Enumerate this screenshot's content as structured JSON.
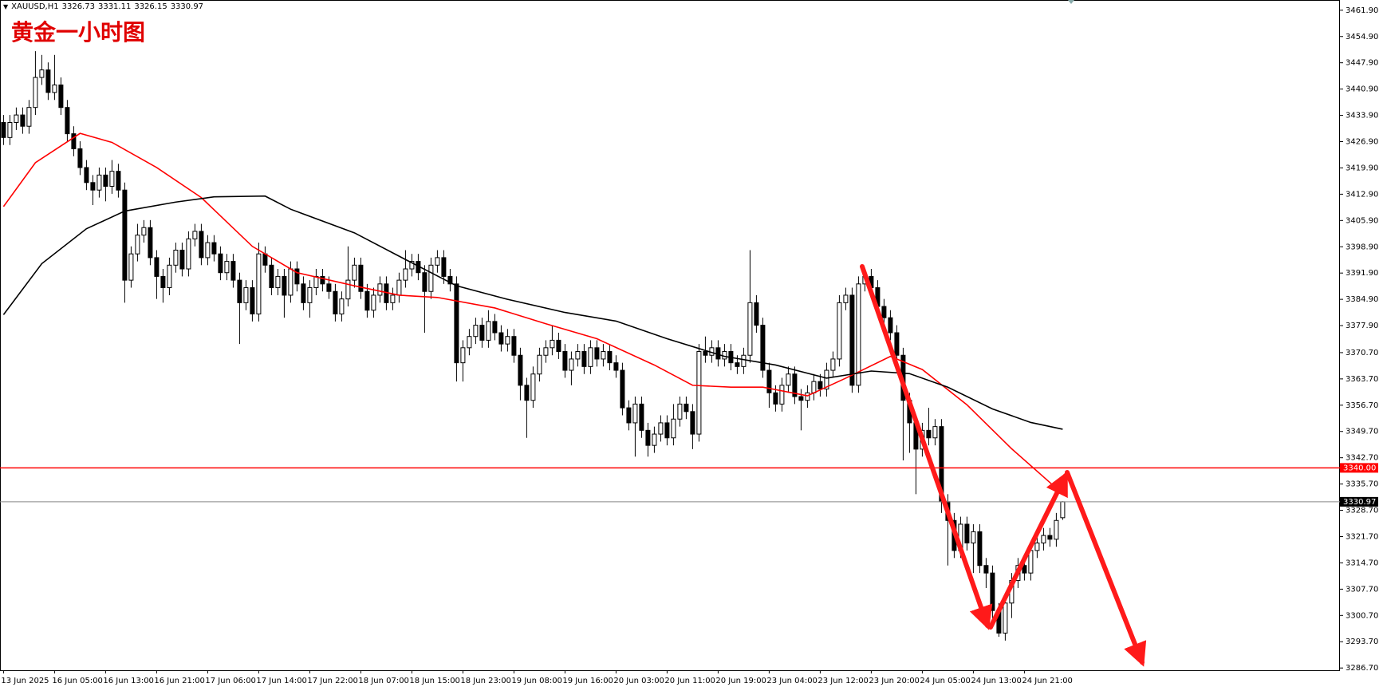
{
  "chart_data": {
    "type": "candlestick",
    "title": "黄金一小时图",
    "symbol": "XAUUSD,H1",
    "categories": [
      "13 Jun 2025",
      null,
      null,
      null,
      null,
      null,
      null,
      null,
      "16 Jun 05:00",
      null,
      null,
      null,
      null,
      null,
      null,
      null,
      "16 Jun 13:00",
      null,
      null,
      null,
      null,
      null,
      null,
      null,
      "16 Jun 21:00",
      null,
      null,
      null,
      null,
      null,
      null,
      null,
      "17 Jun 06:00",
      null,
      null,
      null,
      null,
      null,
      null,
      null,
      "17 Jun 14:00",
      null,
      null,
      null,
      null,
      null,
      null,
      null,
      "17 Jun 22:00",
      null,
      null,
      null,
      null,
      null,
      null,
      null,
      "18 Jun 07:00",
      null,
      null,
      null,
      null,
      null,
      null,
      null,
      "18 Jun 15:00",
      null,
      null,
      null,
      null,
      null,
      null,
      null,
      "18 Jun 23:00",
      null,
      null,
      null,
      null,
      null,
      null,
      null,
      "19 Jun 08:00",
      null,
      null,
      null,
      null,
      null,
      null,
      null,
      "19 Jun 16:00",
      null,
      null,
      null,
      null,
      null,
      null,
      null,
      "20 Jun 03:00",
      null,
      null,
      null,
      null,
      null,
      null,
      null,
      "20 Jun 11:00",
      null,
      null,
      null,
      null,
      null,
      null,
      null,
      "20 Jun 19:00",
      null,
      null,
      null,
      null,
      null,
      null,
      null,
      "23 Jun 04:00",
      null,
      null,
      null,
      null,
      null,
      null,
      null,
      "23 Jun 12:00",
      null,
      null,
      null,
      null,
      null,
      null,
      null,
      "23 Jun 20:00",
      null,
      null,
      null,
      null,
      null,
      null,
      null,
      "24 Jun 05:00",
      null,
      null,
      null,
      null,
      null,
      null,
      null,
      "24 Jun 13:00",
      null,
      null,
      null,
      null,
      null,
      null,
      null,
      "24 Jun 21:00",
      null,
      null,
      null,
      null,
      null,
      null
    ],
    "open": [
      3432,
      3428,
      3432,
      3434,
      3431,
      3436,
      3444,
      3446,
      3440,
      3442,
      3436,
      3429,
      3425,
      3420,
      3416,
      3414,
      3418,
      3415,
      3419,
      3414,
      3390,
      3397,
      3402,
      3404,
      3396,
      3391,
      3388,
      3394,
      3398,
      3393,
      3401,
      3403,
      3396,
      3400,
      3397,
      3392,
      3395,
      3390,
      3384,
      3388,
      3381,
      3397,
      3394,
      3388,
      3391,
      3386,
      3393,
      3389,
      3384,
      3388,
      3391,
      3389,
      3387,
      3381,
      3385,
      3390,
      3394,
      3387,
      3382,
      3386,
      3389,
      3384,
      3386,
      3390,
      3393,
      3395,
      3392,
      3387,
      3394,
      3396,
      3391,
      3389,
      3368,
      3372,
      3375,
      3378,
      3374,
      3379,
      3376,
      3373,
      3375,
      3370,
      3362,
      3358,
      3365,
      3370,
      3372,
      3374,
      3371,
      3366,
      3369,
      3371,
      3367,
      3372,
      3369,
      3371,
      3368,
      3366,
      3356,
      3352,
      3357,
      3350,
      3346,
      3349,
      3352,
      3348,
      3353,
      3357,
      3355,
      3349,
      3371,
      3370,
      3372,
      3369,
      3371,
      3368,
      3367,
      3370,
      3384,
      3378,
      3366,
      3360,
      3357,
      3362,
      3365,
      3359,
      3358,
      3360,
      3363,
      3361,
      3366,
      3369,
      3384,
      3386,
      3362,
      3389,
      3391,
      3388,
      3383,
      3380,
      3376,
      3370,
      3358,
      3352,
      3345,
      3350,
      3348,
      3351,
      3331,
      3326,
      3318,
      3325,
      3320,
      3323,
      3314,
      3312,
      3302,
      3296,
      3304,
      3310,
      3314,
      3312,
      3318,
      3320,
      3322,
      3321,
      3326.73
    ],
    "high": [
      3434,
      3434,
      3436,
      3436,
      3438,
      3451,
      3450,
      3448,
      3450,
      3444,
      3438,
      3431,
      3427,
      3422,
      3418,
      3420,
      3420,
      3422,
      3421,
      3416,
      3399,
      3405,
      3406,
      3406,
      3398,
      3393,
      3396,
      3400,
      3400,
      3403,
      3405,
      3405,
      3402,
      3402,
      3399,
      3397,
      3397,
      3392,
      3390,
      3390,
      3400,
      3399,
      3396,
      3393,
      3393,
      3395,
      3395,
      3391,
      3390,
      3393,
      3393,
      3391,
      3389,
      3387,
      3399,
      3396,
      3396,
      3389,
      3388,
      3391,
      3391,
      3388,
      3392,
      3398,
      3397,
      3397,
      3394,
      3396,
      3398,
      3398,
      3393,
      3391,
      3374,
      3377,
      3380,
      3380,
      3382,
      3381,
      3378,
      3377,
      3377,
      3372,
      3364,
      3367,
      3372,
      3374,
      3378,
      3376,
      3373,
      3371,
      3373,
      3373,
      3374,
      3374,
      3373,
      3373,
      3370,
      3368,
      3358,
      3359,
      3359,
      3352,
      3351,
      3354,
      3354,
      3357,
      3359,
      3359,
      3357,
      3373,
      3375,
      3374,
      3374,
      3373,
      3373,
      3370,
      3372,
      3398,
      3386,
      3380,
      3368,
      3362,
      3364,
      3367,
      3367,
      3361,
      3362,
      3365,
      3365,
      3368,
      3371,
      3386,
      3388,
      3388,
      3391,
      3393,
      3393,
      3390,
      3385,
      3382,
      3378,
      3372,
      3360,
      3354,
      3352,
      3356,
      3353,
      3353,
      3333,
      3328,
      3327,
      3327,
      3325,
      3325,
      3316,
      3314,
      3304,
      3306,
      3312,
      3316,
      3316,
      3320,
      3322,
      3324,
      3324,
      3328,
      3331.11
    ],
    "low": [
      3426,
      3426,
      3430,
      3429,
      3429,
      3434,
      3442,
      3438,
      3438,
      3434,
      3427,
      3423,
      3418,
      3414,
      3410,
      3412,
      3411,
      3413,
      3412,
      3384,
      3388,
      3395,
      3400,
      3394,
      3385,
      3384,
      3386,
      3392,
      3391,
      3391,
      3399,
      3394,
      3394,
      3395,
      3390,
      3390,
      3388,
      3373,
      3382,
      3379,
      3379,
      3392,
      3386,
      3386,
      3380,
      3384,
      3387,
      3382,
      3380,
      3386,
      3387,
      3385,
      3379,
      3379,
      3383,
      3388,
      3385,
      3380,
      3380,
      3384,
      3382,
      3382,
      3384,
      3388,
      3391,
      3390,
      3376,
      3385,
      3392,
      3389,
      3387,
      3363,
      3363,
      3370,
      3373,
      3372,
      3372,
      3374,
      3371,
      3371,
      3368,
      3358,
      3348,
      3356,
      3363,
      3368,
      3370,
      3369,
      3364,
      3362,
      3367,
      3365,
      3365,
      3367,
      3367,
      3366,
      3364,
      3354,
      3350,
      3343,
      3348,
      3343,
      3344,
      3347,
      3346,
      3346,
      3351,
      3353,
      3345,
      3347,
      3368,
      3368,
      3367,
      3367,
      3366,
      3365,
      3365,
      3368,
      3376,
      3364,
      3356,
      3355,
      3355,
      3360,
      3357,
      3350,
      3356,
      3358,
      3359,
      3359,
      3364,
      3367,
      3382,
      3360,
      3360,
      3387,
      3386,
      3381,
      3376,
      3374,
      3368,
      3342,
      3344,
      3333,
      3343,
      3346,
      3346,
      3328,
      3314,
      3316,
      3316,
      3318,
      3312,
      3312,
      3308,
      3300,
      3295,
      3294,
      3300,
      3308,
      3310,
      3310,
      3316,
      3318,
      3319,
      3319,
      3326.15
    ],
    "close": [
      3428,
      3432,
      3434,
      3431,
      3436,
      3444,
      3446,
      3440,
      3442,
      3436,
      3429,
      3425,
      3420,
      3416,
      3414,
      3418,
      3415,
      3419,
      3414,
      3390,
      3397,
      3402,
      3404,
      3396,
      3391,
      3388,
      3394,
      3398,
      3393,
      3401,
      3403,
      3396,
      3400,
      3397,
      3392,
      3395,
      3390,
      3384,
      3388,
      3381,
      3397,
      3394,
      3388,
      3391,
      3386,
      3393,
      3389,
      3384,
      3388,
      3391,
      3389,
      3387,
      3381,
      3385,
      3390,
      3394,
      3387,
      3382,
      3386,
      3389,
      3384,
      3386,
      3390,
      3393,
      3395,
      3392,
      3387,
      3394,
      3396,
      3391,
      3389,
      3368,
      3372,
      3375,
      3378,
      3374,
      3379,
      3376,
      3373,
      3375,
      3370,
      3362,
      3358,
      3365,
      3370,
      3372,
      3374,
      3371,
      3366,
      3369,
      3371,
      3367,
      3372,
      3369,
      3371,
      3368,
      3366,
      3356,
      3352,
      3357,
      3350,
      3346,
      3349,
      3352,
      3348,
      3353,
      3357,
      3355,
      3349,
      3371,
      3370,
      3372,
      3369,
      3371,
      3368,
      3367,
      3370,
      3384,
      3378,
      3366,
      3360,
      3357,
      3362,
      3365,
      3359,
      3358,
      3360,
      3363,
      3361,
      3366,
      3369,
      3384,
      3386,
      3362,
      3389,
      3391,
      3388,
      3383,
      3380,
      3376,
      3370,
      3358,
      3352,
      3345,
      3350,
      3348,
      3351,
      3331,
      3326,
      3318,
      3325,
      3320,
      3323,
      3314,
      3312,
      3302,
      3296,
      3304,
      3310,
      3314,
      3312,
      3318,
      3320,
      3322,
      3321,
      3326,
      3330.97
    ],
    "bull_color": "#ffffff",
    "bear_color": "#000000",
    "wick_color": "#000000",
    "overlays": [
      {
        "color": "#ff0000",
        "x": [
          0,
          5,
          12,
          17,
          24,
          31,
          39,
          46,
          55,
          62,
          68,
          77,
          85,
          93,
          102,
          108,
          114,
          119,
          126,
          132,
          139,
          144,
          151,
          158,
          165,
          166
        ],
        "values": [
          3409.6,
          3421.3,
          3429.1,
          3426.7,
          3420,
          3412,
          3399,
          3392,
          3388.5,
          3386,
          3385.4,
          3382.6,
          3378.4,
          3374.4,
          3367.4,
          3362,
          3361.5,
          3361.5,
          3359.2,
          3363.9,
          3369.7,
          3366.2,
          3356.8,
          3345.1,
          3334.6,
          3333.4
        ]
      },
      {
        "color": "#000000",
        "x": [
          0,
          6,
          13,
          19,
          27,
          33,
          41,
          45,
          55,
          63,
          71,
          79,
          88,
          96,
          104,
          113,
          121,
          129,
          136,
          142,
          148,
          155,
          161,
          166
        ],
        "values": [
          3380.8,
          3394.4,
          3403.7,
          3408.4,
          3410.8,
          3412.2,
          3412.4,
          3408.9,
          3402.6,
          3395.5,
          3388.5,
          3384.9,
          3381.4,
          3379.1,
          3374.4,
          3369.7,
          3367.4,
          3363.9,
          3365.8,
          3365.1,
          3361.5,
          3355.7,
          3352.1,
          3350.3
        ]
      }
    ],
    "levels": [
      {
        "value": 3340,
        "label": "3340.00",
        "color": "#ff0000"
      }
    ],
    "ylim": [
      3286.1,
      3464.2
    ],
    "yticks": [
      {
        "value": 3461.9,
        "label": "3461.90"
      },
      {
        "value": 3454.9,
        "label": "3454.90"
      },
      {
        "value": 3447.9,
        "label": "3447.90"
      },
      {
        "value": 3440.9,
        "label": "3440.90"
      },
      {
        "value": 3433.9,
        "label": "3433.90"
      },
      {
        "value": 3426.9,
        "label": "3426.90"
      },
      {
        "value": 3419.9,
        "label": "3419.90"
      },
      {
        "value": 3412.9,
        "label": "3412.90"
      },
      {
        "value": 3405.9,
        "label": "3405.90"
      },
      {
        "value": 3398.9,
        "label": "3398.90"
      },
      {
        "value": 3391.9,
        "label": "3391.90"
      },
      {
        "value": 3384.9,
        "label": "3384.90"
      },
      {
        "value": 3377.9,
        "label": "3377.90"
      },
      {
        "value": 3370.7,
        "label": "3370.70"
      },
      {
        "value": 3363.7,
        "label": "3363.70"
      },
      {
        "value": 3356.7,
        "label": "3356.70"
      },
      {
        "value": 3349.7,
        "label": "3349.70"
      },
      {
        "value": 3342.7,
        "label": "3342.70"
      },
      {
        "value": 3335.7,
        "label": "3335.70"
      },
      {
        "value": 3328.7,
        "label": "3328.70"
      },
      {
        "value": 3321.7,
        "label": "3321.70"
      },
      {
        "value": 3314.7,
        "label": "3314.70"
      },
      {
        "value": 3307.7,
        "label": "3307.70"
      },
      {
        "value": 3300.7,
        "label": "3300.70"
      },
      {
        "value": 3293.7,
        "label": "3293.70"
      },
      {
        "value": 3286.7,
        "label": "3286.70"
      }
    ],
    "grid": false
  }
}
